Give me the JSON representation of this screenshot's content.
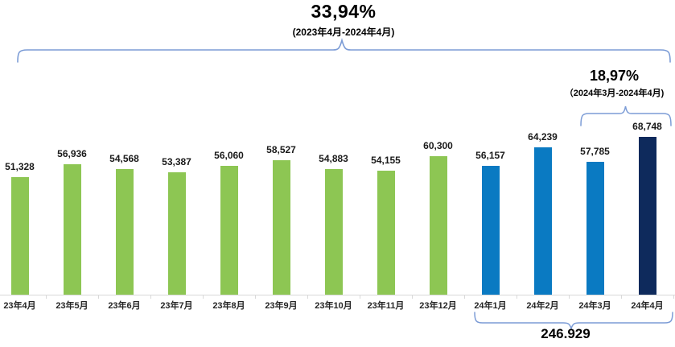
{
  "chart_data": {
    "type": "bar",
    "title": "",
    "xlabel": "",
    "ylabel": "",
    "ylim": [
      0,
      70000
    ],
    "grid": false,
    "legend": "none",
    "categories": [
      "23年4月",
      "23年5月",
      "23年6月",
      "23年7月",
      "23年8月",
      "23年9月",
      "23年10月",
      "23年11月",
      "23年12月",
      "24年1月",
      "24年2月",
      "24年3月",
      "24年4月"
    ],
    "values": [
      51328,
      56936,
      54568,
      53387,
      56060,
      58527,
      54883,
      54155,
      60300,
      56157,
      64239,
      57785,
      68748
    ],
    "value_labels": [
      "51,328",
      "56,936",
      "54,568",
      "53,387",
      "56,060",
      "58,527",
      "54,883",
      "54,155",
      "60,300",
      "56,157",
      "64,239",
      "57,785",
      "68,748"
    ],
    "bar_colors": [
      "#8dc653",
      "#8dc653",
      "#8dc653",
      "#8dc653",
      "#8dc653",
      "#8dc653",
      "#8dc653",
      "#8dc653",
      "#8dc653",
      "#0a7ac2",
      "#0a7ac2",
      "#0a7ac2",
      "#0e2a5c"
    ]
  },
  "annotations": {
    "yoy": {
      "percent": "33,94%",
      "range": "(2023年4月-2024年4月)"
    },
    "mom": {
      "percent": "18,97%",
      "range": "（2024年3月-2024年4月)"
    },
    "total": "246.929"
  },
  "colors": {
    "green": "#8dc653",
    "blue": "#0a7ac2",
    "navy": "#0e2a5c",
    "brace": "#7c9cd6",
    "axis": "#d9d9d9",
    "text": "#1a1a1a"
  }
}
